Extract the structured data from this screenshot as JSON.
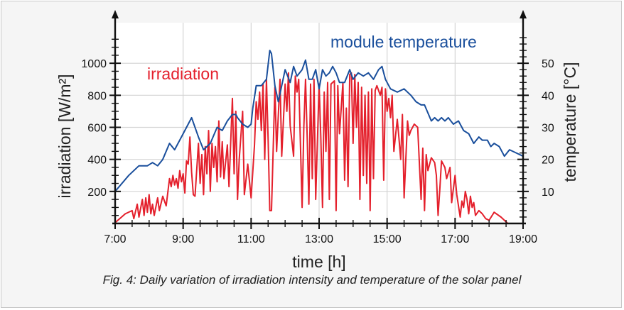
{
  "caption": "Fig. 4: Daily variation of irradiation intensity and temperature of the solar panel",
  "chart_data": {
    "type": "line",
    "xlabel": "time [h]",
    "ylabel_left": "irradiation [W/m²]",
    "ylabel_right": "temperature [°C]",
    "xlim": [
      7,
      19
    ],
    "ylim_left": [
      0,
      1200
    ],
    "ylim_right": [
      0,
      60
    ],
    "x_ticks": [
      "7:00",
      "9:00",
      "11:00",
      "13:00",
      "15:00",
      "17:00",
      "19:00"
    ],
    "y_ticks_left": [
      200,
      400,
      600,
      800,
      1000
    ],
    "y_ticks_right": [
      10,
      20,
      30,
      40,
      50
    ],
    "grid": true,
    "colors": {
      "irradiation": "#e4202c",
      "temperature": "#1a4f9c"
    },
    "series": [
      {
        "name": "irradiation",
        "axis": "left",
        "points": [
          [
            7.0,
            5
          ],
          [
            7.3,
            60
          ],
          [
            7.5,
            80
          ],
          [
            7.55,
            30
          ],
          [
            7.65,
            120
          ],
          [
            7.7,
            40
          ],
          [
            7.8,
            150
          ],
          [
            7.85,
            50
          ],
          [
            7.9,
            160
          ],
          [
            7.95,
            70
          ],
          [
            8.0,
            180
          ],
          [
            8.05,
            60
          ],
          [
            8.1,
            120
          ],
          [
            8.15,
            50
          ],
          [
            8.25,
            160
          ],
          [
            8.3,
            80
          ],
          [
            8.4,
            170
          ],
          [
            8.5,
            110
          ],
          [
            8.6,
            280
          ],
          [
            8.65,
            230
          ],
          [
            8.7,
            300
          ],
          [
            8.75,
            240
          ],
          [
            8.8,
            280
          ],
          [
            8.85,
            220
          ],
          [
            8.9,
            330
          ],
          [
            8.95,
            260
          ],
          [
            9.0,
            310
          ],
          [
            9.05,
            190
          ],
          [
            9.1,
            390
          ],
          [
            9.15,
            370
          ],
          [
            9.2,
            540
          ],
          [
            9.25,
            320
          ],
          [
            9.3,
            180
          ],
          [
            9.35,
            170
          ],
          [
            9.45,
            500
          ],
          [
            9.5,
            250
          ],
          [
            9.55,
            430
          ],
          [
            9.6,
            180
          ],
          [
            9.65,
            480
          ],
          [
            9.7,
            310
          ],
          [
            9.75,
            580
          ],
          [
            9.8,
            200
          ],
          [
            9.85,
            500
          ],
          [
            9.9,
            350
          ],
          [
            9.95,
            480
          ],
          [
            10.0,
            260
          ],
          [
            10.05,
            640
          ],
          [
            10.1,
            290
          ],
          [
            10.15,
            510
          ],
          [
            10.2,
            280
          ],
          [
            10.3,
            490
          ],
          [
            10.35,
            230
          ],
          [
            10.45,
            780
          ],
          [
            10.5,
            310
          ],
          [
            10.55,
            700
          ],
          [
            10.6,
            150
          ],
          [
            10.65,
            400
          ],
          [
            10.75,
            700
          ],
          [
            10.8,
            180
          ],
          [
            10.9,
            370
          ],
          [
            11.0,
            160
          ],
          [
            11.1,
            490
          ],
          [
            11.15,
            760
          ],
          [
            11.2,
            650
          ],
          [
            11.25,
            820
          ],
          [
            11.3,
            580
          ],
          [
            11.35,
            870
          ],
          [
            11.4,
            400
          ],
          [
            11.45,
            900
          ],
          [
            11.5,
            520
          ],
          [
            11.55,
            80
          ],
          [
            11.6,
            80
          ],
          [
            11.7,
            850
          ],
          [
            11.75,
            450
          ],
          [
            11.85,
            900
          ],
          [
            11.9,
            420
          ],
          [
            12.0,
            870
          ],
          [
            12.05,
            700
          ],
          [
            12.1,
            940
          ],
          [
            12.15,
            610
          ],
          [
            12.25,
            420
          ],
          [
            12.3,
            920
          ],
          [
            12.35,
            820
          ],
          [
            12.4,
            900
          ],
          [
            12.45,
            500
          ],
          [
            12.5,
            100
          ],
          [
            12.55,
            600
          ],
          [
            12.6,
            900
          ],
          [
            12.65,
            530
          ],
          [
            12.7,
            120
          ],
          [
            12.75,
            870
          ],
          [
            12.8,
            280
          ],
          [
            12.85,
            900
          ],
          [
            12.9,
            150
          ],
          [
            13.0,
            870
          ],
          [
            13.05,
            540
          ],
          [
            13.1,
            100
          ],
          [
            13.15,
            820
          ],
          [
            13.2,
            450
          ],
          [
            13.25,
            880
          ],
          [
            13.3,
            150
          ],
          [
            13.35,
            870
          ],
          [
            13.45,
            890
          ],
          [
            13.5,
            80
          ],
          [
            13.55,
            860
          ],
          [
            13.6,
            560
          ],
          [
            13.7,
            880
          ],
          [
            13.75,
            270
          ],
          [
            13.8,
            720
          ],
          [
            13.85,
            230
          ],
          [
            13.9,
            930
          ],
          [
            13.95,
            940
          ],
          [
            14.0,
            500
          ],
          [
            14.05,
            930
          ],
          [
            14.1,
            600
          ],
          [
            14.15,
            880
          ],
          [
            14.2,
            150
          ],
          [
            14.25,
            850
          ],
          [
            14.3,
            300
          ],
          [
            14.35,
            800
          ],
          [
            14.4,
            250
          ],
          [
            14.45,
            820
          ],
          [
            14.5,
            80
          ],
          [
            14.55,
            840
          ],
          [
            14.6,
            280
          ],
          [
            14.65,
            830
          ],
          [
            14.7,
            860
          ],
          [
            14.8,
            800
          ],
          [
            14.85,
            850
          ],
          [
            14.9,
            270
          ],
          [
            14.95,
            840
          ],
          [
            15.0,
            700
          ],
          [
            15.05,
            780
          ],
          [
            15.1,
            660
          ],
          [
            15.15,
            800
          ],
          [
            15.2,
            450
          ],
          [
            15.3,
            650
          ],
          [
            15.35,
            530
          ],
          [
            15.4,
            400
          ],
          [
            15.45,
            680
          ],
          [
            15.5,
            160
          ],
          [
            15.6,
            640
          ],
          [
            15.65,
            550
          ],
          [
            15.7,
            580
          ],
          [
            15.8,
            620
          ],
          [
            15.9,
            600
          ],
          [
            16.0,
            150
          ],
          [
            16.05,
            470
          ],
          [
            16.1,
            80
          ],
          [
            16.15,
            430
          ],
          [
            16.2,
            330
          ],
          [
            16.3,
            410
          ],
          [
            16.4,
            380
          ],
          [
            16.45,
            300
          ],
          [
            16.5,
            50
          ],
          [
            16.55,
            210
          ],
          [
            16.6,
            390
          ],
          [
            16.7,
            350
          ],
          [
            16.75,
            280
          ],
          [
            16.85,
            350
          ],
          [
            16.9,
            130
          ],
          [
            17.0,
            300
          ],
          [
            17.05,
            180
          ],
          [
            17.15,
            40
          ],
          [
            17.2,
            140
          ],
          [
            17.25,
            100
          ],
          [
            17.3,
            200
          ],
          [
            17.35,
            150
          ],
          [
            17.4,
            60
          ],
          [
            17.45,
            170
          ],
          [
            17.5,
            100
          ],
          [
            17.55,
            130
          ],
          [
            17.6,
            50
          ],
          [
            17.7,
            80
          ],
          [
            17.8,
            60
          ],
          [
            17.9,
            30
          ],
          [
            18.0,
            20
          ],
          [
            18.15,
            70
          ],
          [
            18.35,
            40
          ],
          [
            18.55,
            0
          ]
        ]
      },
      {
        "name": "module temperature",
        "axis": "right",
        "points": [
          [
            7.0,
            10
          ],
          [
            7.4,
            15
          ],
          [
            7.7,
            18
          ],
          [
            7.95,
            18
          ],
          [
            8.1,
            19
          ],
          [
            8.25,
            18
          ],
          [
            8.4,
            20
          ],
          [
            8.6,
            25
          ],
          [
            8.75,
            23
          ],
          [
            9.0,
            28
          ],
          [
            9.25,
            33
          ],
          [
            9.45,
            27
          ],
          [
            9.6,
            23
          ],
          [
            9.8,
            25
          ],
          [
            10.0,
            30
          ],
          [
            10.15,
            29
          ],
          [
            10.3,
            32
          ],
          [
            10.45,
            34
          ],
          [
            10.55,
            34
          ],
          [
            10.6,
            33
          ],
          [
            10.75,
            31
          ],
          [
            10.9,
            30
          ],
          [
            11.0,
            31
          ],
          [
            11.05,
            36
          ],
          [
            11.15,
            43
          ],
          [
            11.3,
            43
          ],
          [
            11.45,
            45
          ],
          [
            11.55,
            54
          ],
          [
            11.6,
            53
          ],
          [
            11.7,
            43
          ],
          [
            11.8,
            38
          ],
          [
            11.9,
            43
          ],
          [
            12.0,
            48
          ],
          [
            12.15,
            44
          ],
          [
            12.25,
            49
          ],
          [
            12.35,
            46
          ],
          [
            12.5,
            48
          ],
          [
            12.6,
            51
          ],
          [
            12.7,
            45
          ],
          [
            12.8,
            45
          ],
          [
            12.9,
            48
          ],
          [
            13.0,
            42
          ],
          [
            13.1,
            48
          ],
          [
            13.2,
            46
          ],
          [
            13.3,
            47
          ],
          [
            13.4,
            49
          ],
          [
            13.5,
            47
          ],
          [
            13.6,
            44
          ],
          [
            13.75,
            44
          ],
          [
            13.9,
            48
          ],
          [
            14.0,
            45
          ],
          [
            14.15,
            47
          ],
          [
            14.3,
            46
          ],
          [
            14.45,
            47
          ],
          [
            14.6,
            45
          ],
          [
            14.75,
            48
          ],
          [
            14.85,
            49
          ],
          [
            14.95,
            45
          ],
          [
            15.1,
            42
          ],
          [
            15.3,
            41
          ],
          [
            15.5,
            42
          ],
          [
            15.7,
            40
          ],
          [
            15.85,
            38
          ],
          [
            16.0,
            37
          ],
          [
            16.1,
            37
          ],
          [
            16.3,
            32
          ],
          [
            16.4,
            33
          ],
          [
            16.5,
            32
          ],
          [
            16.6,
            33
          ],
          [
            16.7,
            32
          ],
          [
            16.8,
            33
          ],
          [
            16.95,
            31
          ],
          [
            17.1,
            32
          ],
          [
            17.25,
            29
          ],
          [
            17.4,
            28
          ],
          [
            17.55,
            25
          ],
          [
            17.7,
            27
          ],
          [
            17.8,
            26
          ],
          [
            17.95,
            26
          ],
          [
            18.05,
            24
          ],
          [
            18.15,
            25
          ],
          [
            18.3,
            24
          ],
          [
            18.45,
            21
          ],
          [
            18.6,
            23
          ],
          [
            18.8,
            22
          ],
          [
            19.0,
            21
          ]
        ]
      }
    ]
  }
}
